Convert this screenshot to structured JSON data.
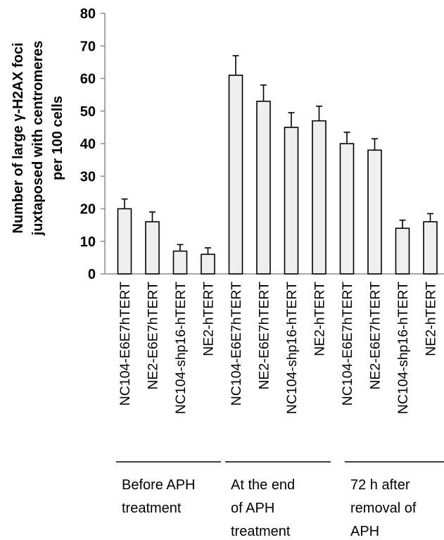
{
  "chart_data": {
    "type": "bar",
    "title": "",
    "ylabel": [
      "Number of large γ-H2AX foci",
      "juxtaposed with centromeres",
      "per 100 cells"
    ],
    "xlabel": "",
    "ylim": [
      0,
      80
    ],
    "yticks": [
      0,
      10,
      20,
      30,
      40,
      50,
      60,
      70,
      80
    ],
    "grid": false,
    "legend": "none",
    "bar_fill": "#efefef",
    "bar_stroke": "#000000",
    "categories": [
      "NC104-E6E7hTERT",
      "NE2-E6E7hTERT",
      "NC104-shp16-hTERT",
      "NE2-hTERT",
      "NC104-E6E7hTERT",
      "NE2-E6E7hTERT",
      "NC104-shp16-hTERT",
      "NE2-hTERT",
      "NC104-E6E7hTERT",
      "NE2-E6E7hTERT",
      "NC104-shp16-hTERT",
      "NE2-hTERT"
    ],
    "values": [
      20,
      16,
      7,
      6,
      61,
      53,
      45,
      47,
      40,
      38,
      14,
      16
    ],
    "error_plus": [
      3,
      3,
      2,
      2,
      6,
      5,
      4.5,
      4.5,
      3.5,
      3.5,
      2.5,
      2.5
    ],
    "groups": [
      {
        "label": [
          "Before APH",
          "treatment"
        ],
        "bar_indices": [
          0,
          1,
          2,
          3
        ]
      },
      {
        "label": [
          "At the end",
          "of  APH",
          "treatment"
        ],
        "bar_indices": [
          4,
          5,
          6,
          7
        ]
      },
      {
        "label": [
          "72 h after",
          "removal of",
          "APH"
        ],
        "bar_indices": [
          8,
          9,
          10,
          11
        ]
      }
    ]
  }
}
